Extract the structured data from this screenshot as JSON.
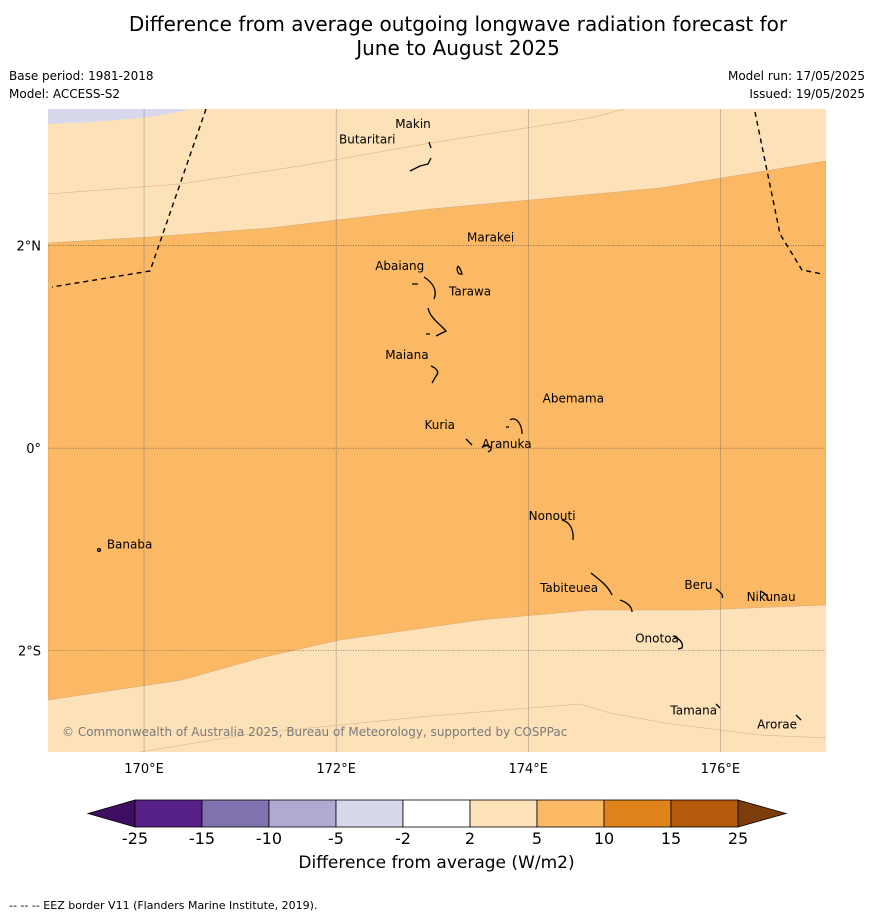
{
  "header": {
    "title_line1": "Difference from average outgoing longwave radiation forecast for",
    "title_line2": "June to August 2025",
    "base_period": "Base period: 1981-2018",
    "model": "Model: ACCESS-S2",
    "model_run": "Model run: 17/05/2025",
    "issued": "Issued: 19/05/2025"
  },
  "map": {
    "lon_range": [
      169.0,
      177.1
    ],
    "lat_range": [
      -3.0,
      3.35
    ],
    "lon_ticks": [
      {
        "value": 170,
        "label": "170°E"
      },
      {
        "value": 172,
        "label": "172°E"
      },
      {
        "value": 174,
        "label": "174°E"
      },
      {
        "value": 176,
        "label": "176°E"
      }
    ],
    "lat_ticks": [
      {
        "value": 2,
        "label": "2°N"
      },
      {
        "value": 0,
        "label": "0°"
      },
      {
        "value": -2,
        "label": "2°S"
      }
    ],
    "places": [
      {
        "name": "Makin",
        "lon": 173.0,
        "lat": 3.2
      },
      {
        "name": "Butaritari",
        "lon": 172.8,
        "lat": 3.05
      },
      {
        "name": "Marakei",
        "lon": 173.3,
        "lat": 2.0
      },
      {
        "name": "Abaiang",
        "lon": 173.0,
        "lat": 1.8
      },
      {
        "name": "Tarawa",
        "lon": 173.05,
        "lat": 1.45
      },
      {
        "name": "Maiana",
        "lon": 173.0,
        "lat": 0.92
      },
      {
        "name": "Abemama",
        "lon": 173.9,
        "lat": 0.4
      },
      {
        "name": "Kuria",
        "lon": 173.42,
        "lat": 0.22
      },
      {
        "name": "Aranuka",
        "lon": 173.6,
        "lat": 0.16
      },
      {
        "name": "Nonouti",
        "lon": 174.4,
        "lat": -0.65
      },
      {
        "name": "Banaba",
        "lon": 169.55,
        "lat": -0.87
      },
      {
        "name": "Tabiteuea",
        "lon": 174.8,
        "lat": -1.3
      },
      {
        "name": "Beru",
        "lon": 176.0,
        "lat": -1.33
      },
      {
        "name": "Nikunau",
        "lon": 176.45,
        "lat": -1.35
      },
      {
        "name": "Onotoa",
        "lon": 175.55,
        "lat": -1.8
      },
      {
        "name": "Tamana",
        "lon": 175.98,
        "lat": -2.5
      },
      {
        "name": "Arorae",
        "lon": 176.82,
        "lat": -2.63
      }
    ],
    "copyright": "© Commonwealth of Australia 2025, Bureau of Meteorology, supported by COSPPac"
  },
  "chart_data": {
    "type": "heatmap",
    "xlabel": "",
    "ylabel": "",
    "colorbar": {
      "label": "Difference from average (W/m2)",
      "boundaries": [
        "-25",
        "-15",
        "-10",
        "-5",
        "-2",
        "2",
        "5",
        "10",
        "15",
        "25"
      ],
      "colors": [
        "#3e0e62",
        "#582189",
        "#8271af",
        "#b2a9d3",
        "#d8d8ec",
        "#ffffff",
        "#fde1b8",
        "#fbb865",
        "#e0831a",
        "#b35a0d",
        "#7d3d09"
      ],
      "extend": "both"
    },
    "filled_regions": [
      {
        "range": "2 to 5",
        "color": "#fde1b8"
      },
      {
        "range": "5 to 10",
        "color": "#fbb865"
      },
      {
        "range": "-5 to -2",
        "color": "#d8d8ec"
      }
    ]
  },
  "legend": {
    "eez_note": "--  --  -- EEZ border V11 (Flanders Marine Institute, 2019)."
  }
}
